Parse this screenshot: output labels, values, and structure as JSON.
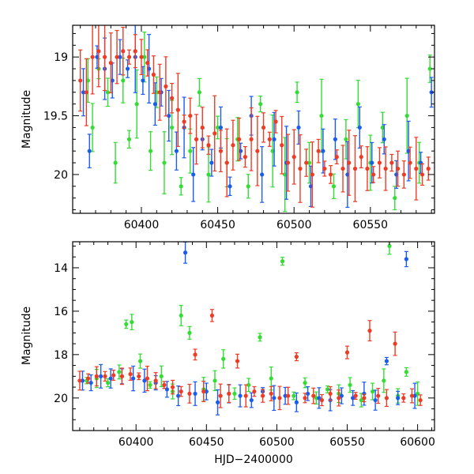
{
  "chart_data": [
    {
      "type": "scatter",
      "ylabel": "Magnitude",
      "xlabel": "",
      "xlim": [
        60355,
        60592
      ],
      "ylim": [
        20.33,
        18.73
      ],
      "y_inverted": true,
      "xticks": [
        60400,
        60450,
        60500,
        60550
      ],
      "yticks": [
        19,
        19.5,
        20
      ],
      "ytick_labels": [
        "19",
        "19.5",
        "20"
      ],
      "series": [
        {
          "color": "#33dd33",
          "points": [
            [
              60365,
              19.2
            ],
            [
              60368,
              19.6
            ],
            [
              60372,
              19.1
            ],
            [
              60378,
              19.3
            ],
            [
              60383,
              19.9
            ],
            [
              60388,
              19.2
            ],
            [
              60392,
              19.7
            ],
            [
              60397,
              19.4
            ],
            [
              60402,
              19.0
            ],
            [
              60406,
              19.8
            ],
            [
              60410,
              19.3
            ],
            [
              60415,
              19.9
            ],
            [
              60420,
              19.6
            ],
            [
              60426,
              20.1
            ],
            [
              60432,
              19.8
            ],
            [
              60438,
              19.3
            ],
            [
              60444,
              20.0
            ],
            [
              60450,
              19.6
            ],
            [
              60456,
              19.9
            ],
            [
              60463,
              19.7
            ],
            [
              60470,
              20.1
            ],
            [
              60478,
              19.4
            ],
            [
              60486,
              19.8
            ],
            [
              60494,
              20.0
            ],
            [
              60502,
              19.3
            ],
            [
              60510,
              19.9
            ],
            [
              60518,
              19.5
            ],
            [
              60526,
              20.1
            ],
            [
              60534,
              19.7
            ],
            [
              60542,
              19.4
            ],
            [
              60550,
              19.9
            ],
            [
              60558,
              19.6
            ],
            [
              60566,
              20.2
            ],
            [
              60574,
              19.5
            ],
            [
              60582,
              19.9
            ],
            [
              60589,
              19.1
            ]
          ]
        },
        {
          "color": "#1a5cf0",
          "points": [
            [
              60362,
              19.3
            ],
            [
              60366,
              19.8
            ],
            [
              60371,
              19.0
            ],
            [
              60376,
              19.1
            ],
            [
              60381,
              19.2
            ],
            [
              60386,
              19.0
            ],
            [
              60391,
              19.1
            ],
            [
              60396,
              19.0
            ],
            [
              60401,
              19.2
            ],
            [
              60405,
              19.1
            ],
            [
              60409,
              19.4
            ],
            [
              60413,
              19.3
            ],
            [
              60418,
              19.5
            ],
            [
              60423,
              19.8
            ],
            [
              60428,
              19.6
            ],
            [
              60434,
              20.0
            ],
            [
              60440,
              19.7
            ],
            [
              60446,
              19.9
            ],
            [
              60452,
              19.6
            ],
            [
              60458,
              20.1
            ],
            [
              60465,
              19.8
            ],
            [
              60472,
              19.5
            ],
            [
              60479,
              20.0
            ],
            [
              60487,
              19.7
            ],
            [
              60495,
              19.9
            ],
            [
              60503,
              19.6
            ],
            [
              60511,
              20.1
            ],
            [
              60519,
              19.8
            ],
            [
              60527,
              19.7
            ],
            [
              60535,
              20.0
            ],
            [
              60543,
              19.6
            ],
            [
              60551,
              19.9
            ],
            [
              60559,
              19.7
            ],
            [
              60567,
              20.0
            ],
            [
              60575,
              19.8
            ],
            [
              60583,
              19.9
            ],
            [
              60590,
              19.3
            ]
          ]
        },
        {
          "color": "#f03b24",
          "points": [
            [
              60360,
              19.2
            ],
            [
              60364,
              19.3
            ],
            [
              60368,
              19.0
            ],
            [
              60372,
              18.95
            ],
            [
              60376,
              19.0
            ],
            [
              60380,
              19.05
            ],
            [
              60384,
              19.0
            ],
            [
              60388,
              18.95
            ],
            [
              60392,
              19.0
            ],
            [
              60396,
              18.95
            ],
            [
              60400,
              19.0
            ],
            [
              60404,
              19.05
            ],
            [
              60408,
              19.15
            ],
            [
              60412,
              19.3
            ],
            [
              60416,
              19.25
            ],
            [
              60420,
              19.35
            ],
            [
              60424,
              19.45
            ],
            [
              60428,
              19.55
            ],
            [
              60432,
              19.5
            ],
            [
              60436,
              19.7
            ],
            [
              60440,
              19.6
            ],
            [
              60444,
              19.75
            ],
            [
              60448,
              19.65
            ],
            [
              60452,
              19.8
            ],
            [
              60456,
              19.9
            ],
            [
              60460,
              19.75
            ],
            [
              60464,
              19.7
            ],
            [
              60468,
              19.85
            ],
            [
              60472,
              19.7
            ],
            [
              60476,
              19.8
            ],
            [
              60480,
              19.6
            ],
            [
              60484,
              19.7
            ],
            [
              60488,
              19.55
            ],
            [
              60492,
              19.75
            ],
            [
              60496,
              19.9
            ],
            [
              60500,
              19.85
            ],
            [
              60504,
              19.95
            ],
            [
              60508,
              19.9
            ],
            [
              60512,
              20.0
            ],
            [
              60516,
              19.8
            ],
            [
              60520,
              19.95
            ],
            [
              60524,
              20.0
            ],
            [
              60528,
              19.85
            ],
            [
              60532,
              19.95
            ],
            [
              60536,
              19.9
            ],
            [
              60540,
              19.95
            ],
            [
              60544,
              19.85
            ],
            [
              60548,
              19.95
            ],
            [
              60552,
              20.0
            ],
            [
              60556,
              19.9
            ],
            [
              60560,
              19.95
            ],
            [
              60564,
              19.9
            ],
            [
              60568,
              19.95
            ],
            [
              60572,
              20.0
            ],
            [
              60576,
              19.9
            ],
            [
              60580,
              19.95
            ],
            [
              60584,
              20.0
            ],
            [
              60588,
              19.95
            ]
          ]
        }
      ]
    },
    {
      "type": "scatter",
      "ylabel": "Magnitude",
      "xlabel": "HJD−2400000",
      "xlim": [
        60355,
        60612
      ],
      "ylim": [
        21.5,
        12.8
      ],
      "y_inverted": true,
      "xticks": [
        60400,
        60450,
        60500,
        60550,
        60600
      ],
      "yticks": [
        14,
        16,
        18,
        20
      ],
      "ytick_labels": [
        "14",
        "16",
        "18",
        "20"
      ],
      "series": [
        {
          "color": "#33dd33",
          "points": [
            [
              60365,
              19.2
            ],
            [
              60372,
              19.1
            ],
            [
              60380,
              19.3
            ],
            [
              60388,
              18.8
            ],
            [
              60393,
              16.6
            ],
            [
              60397,
              16.5
            ],
            [
              60403,
              18.3
            ],
            [
              60410,
              19.4
            ],
            [
              60418,
              19.0
            ],
            [
              60426,
              19.7
            ],
            [
              60432,
              16.2
            ],
            [
              60438,
              17.0
            ],
            [
              60448,
              19.6
            ],
            [
              60456,
              19.2
            ],
            [
              60462,
              18.2
            ],
            [
              60470,
              19.8
            ],
            [
              60480,
              19.4
            ],
            [
              60488,
              17.2
            ],
            [
              60496,
              19.1
            ],
            [
              60504,
              13.7
            ],
            [
              60512,
              19.9
            ],
            [
              60520,
              19.3
            ],
            [
              60528,
              20.0
            ],
            [
              60536,
              19.6
            ],
            [
              60544,
              19.8
            ],
            [
              60552,
              19.4
            ],
            [
              60560,
              20.1
            ],
            [
              60568,
              19.7
            ],
            [
              60576,
              19.2
            ],
            [
              60580,
              13.0
            ],
            [
              60586,
              19.9
            ],
            [
              60592,
              18.8
            ],
            [
              60600,
              19.8
            ]
          ]
        },
        {
          "color": "#1a5cf0",
          "points": [
            [
              60362,
              19.2
            ],
            [
              60368,
              19.3
            ],
            [
              60375,
              19.0
            ],
            [
              60382,
              19.1
            ],
            [
              60390,
              19.0
            ],
            [
              60398,
              19.1
            ],
            [
              60406,
              19.2
            ],
            [
              60414,
              19.3
            ],
            [
              60422,
              19.6
            ],
            [
              60430,
              19.9
            ],
            [
              60435,
              13.3
            ],
            [
              60442,
              19.8
            ],
            [
              60450,
              19.7
            ],
            [
              60458,
              20.2
            ],
            [
              60466,
              19.8
            ],
            [
              60474,
              19.9
            ],
            [
              60482,
              20.1
            ],
            [
              60490,
              19.7
            ],
            [
              60498,
              20.0
            ],
            [
              60506,
              19.9
            ],
            [
              60514,
              20.2
            ],
            [
              60522,
              19.8
            ],
            [
              60530,
              20.0
            ],
            [
              60538,
              20.1
            ],
            [
              60546,
              19.9
            ],
            [
              60554,
              20.0
            ],
            [
              60562,
              19.8
            ],
            [
              60570,
              20.1
            ],
            [
              60578,
              18.3
            ],
            [
              60586,
              20.0
            ],
            [
              60592,
              13.6
            ],
            [
              60598,
              19.9
            ]
          ]
        },
        {
          "color": "#f03b24",
          "points": [
            [
              60360,
              19.2
            ],
            [
              60366,
              19.1
            ],
            [
              60372,
              19.0
            ],
            [
              60378,
              19.0
            ],
            [
              60384,
              18.95
            ],
            [
              60390,
              19.0
            ],
            [
              60396,
              18.9
            ],
            [
              60402,
              19.0
            ],
            [
              60408,
              19.1
            ],
            [
              60414,
              19.2
            ],
            [
              60420,
              19.4
            ],
            [
              60426,
              19.5
            ],
            [
              60432,
              19.7
            ],
            [
              60438,
              19.8
            ],
            [
              60442,
              18.0
            ],
            [
              60448,
              19.7
            ],
            [
              60454,
              16.2
            ],
            [
              60460,
              19.9
            ],
            [
              60466,
              19.8
            ],
            [
              60472,
              18.3
            ],
            [
              60478,
              19.9
            ],
            [
              60484,
              19.7
            ],
            [
              60490,
              19.9
            ],
            [
              60496,
              19.8
            ],
            [
              60502,
              20.0
            ],
            [
              60508,
              19.9
            ],
            [
              60514,
              18.1
            ],
            [
              60520,
              20.0
            ],
            [
              60526,
              19.9
            ],
            [
              60532,
              20.1
            ],
            [
              60538,
              19.8
            ],
            [
              60544,
              20.0
            ],
            [
              60550,
              17.9
            ],
            [
              60556,
              19.9
            ],
            [
              60562,
              20.0
            ],
            [
              60566,
              16.9
            ],
            [
              60572,
              19.9
            ],
            [
              60578,
              20.0
            ],
            [
              60584,
              17.5
            ],
            [
              60590,
              20.0
            ],
            [
              60596,
              19.9
            ],
            [
              60602,
              20.1
            ]
          ]
        }
      ]
    }
  ]
}
